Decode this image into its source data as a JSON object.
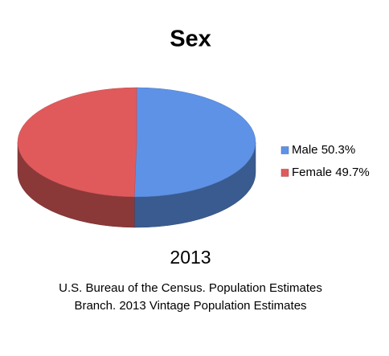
{
  "chart_data": {
    "type": "pie",
    "title": "Sex",
    "subtitle": "2013",
    "categories": [
      "Male",
      "Female"
    ],
    "values": [
      50.3,
      49.7
    ],
    "value_labels": [
      "50.3%",
      "49.7%"
    ],
    "colors": [
      "#5e92e6",
      "#e05a5c"
    ],
    "source": [
      "U.S. Bureau of the Census. Population Estimates",
      "Branch. 2013 Vintage Population Estimates"
    ],
    "legend": "right"
  }
}
